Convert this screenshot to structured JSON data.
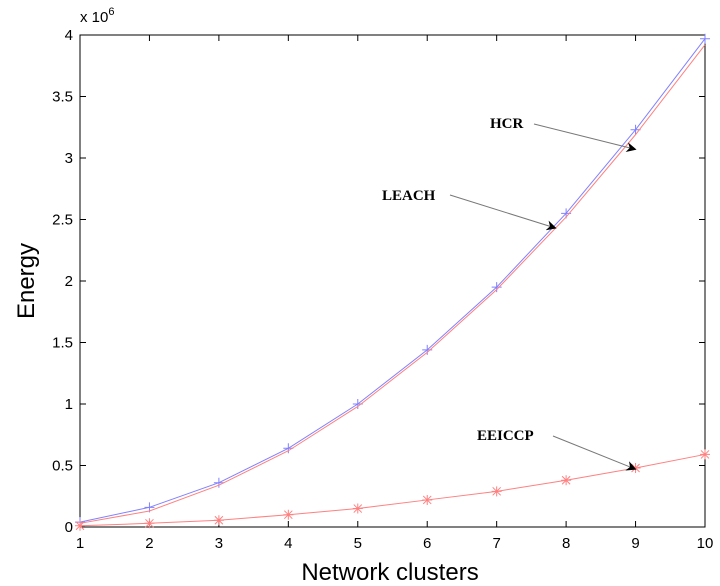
{
  "chart_data": {
    "type": "line",
    "xlabel": "Network clusters",
    "ylabel": "Energy",
    "y_multiplier_label": "x 10",
    "y_multiplier_exponent": "6",
    "xlim": [
      1,
      10
    ],
    "ylim": [
      0,
      4
    ],
    "x_ticks": [
      "1",
      "2",
      "3",
      "4",
      "5",
      "6",
      "7",
      "8",
      "9",
      "10"
    ],
    "y_ticks": [
      "0",
      "0.5",
      "1",
      "1.5",
      "2",
      "2.5",
      "3",
      "3.5",
      "4"
    ],
    "x": [
      1,
      2,
      3,
      4,
      5,
      6,
      7,
      8,
      9,
      10
    ],
    "series": [
      {
        "name": "HCR",
        "color": "#8080ff",
        "marker": "plus",
        "values": [
          0.04,
          0.16,
          0.36,
          0.64,
          1.0,
          1.44,
          1.95,
          2.55,
          3.23,
          3.97
        ]
      },
      {
        "name": "LEACH",
        "color": "#ff8080",
        "marker": "none",
        "values": [
          0.03,
          0.13,
          0.34,
          0.62,
          0.98,
          1.42,
          1.93,
          2.52,
          3.19,
          3.92
        ]
      },
      {
        "name": "EEICCP",
        "color": "#ff8080",
        "marker": "star",
        "values": [
          0.01,
          0.03,
          0.055,
          0.1,
          0.15,
          0.22,
          0.29,
          0.38,
          0.48,
          0.59
        ]
      }
    ],
    "annotations": [
      {
        "text": "HCR",
        "target_x": 9,
        "target_y": 3.07
      },
      {
        "text": "LEACH",
        "target_x": 7.85,
        "target_y": 2.43
      },
      {
        "text": "EEICCP",
        "target_x": 9,
        "target_y": 0.47
      }
    ],
    "grid": false
  }
}
